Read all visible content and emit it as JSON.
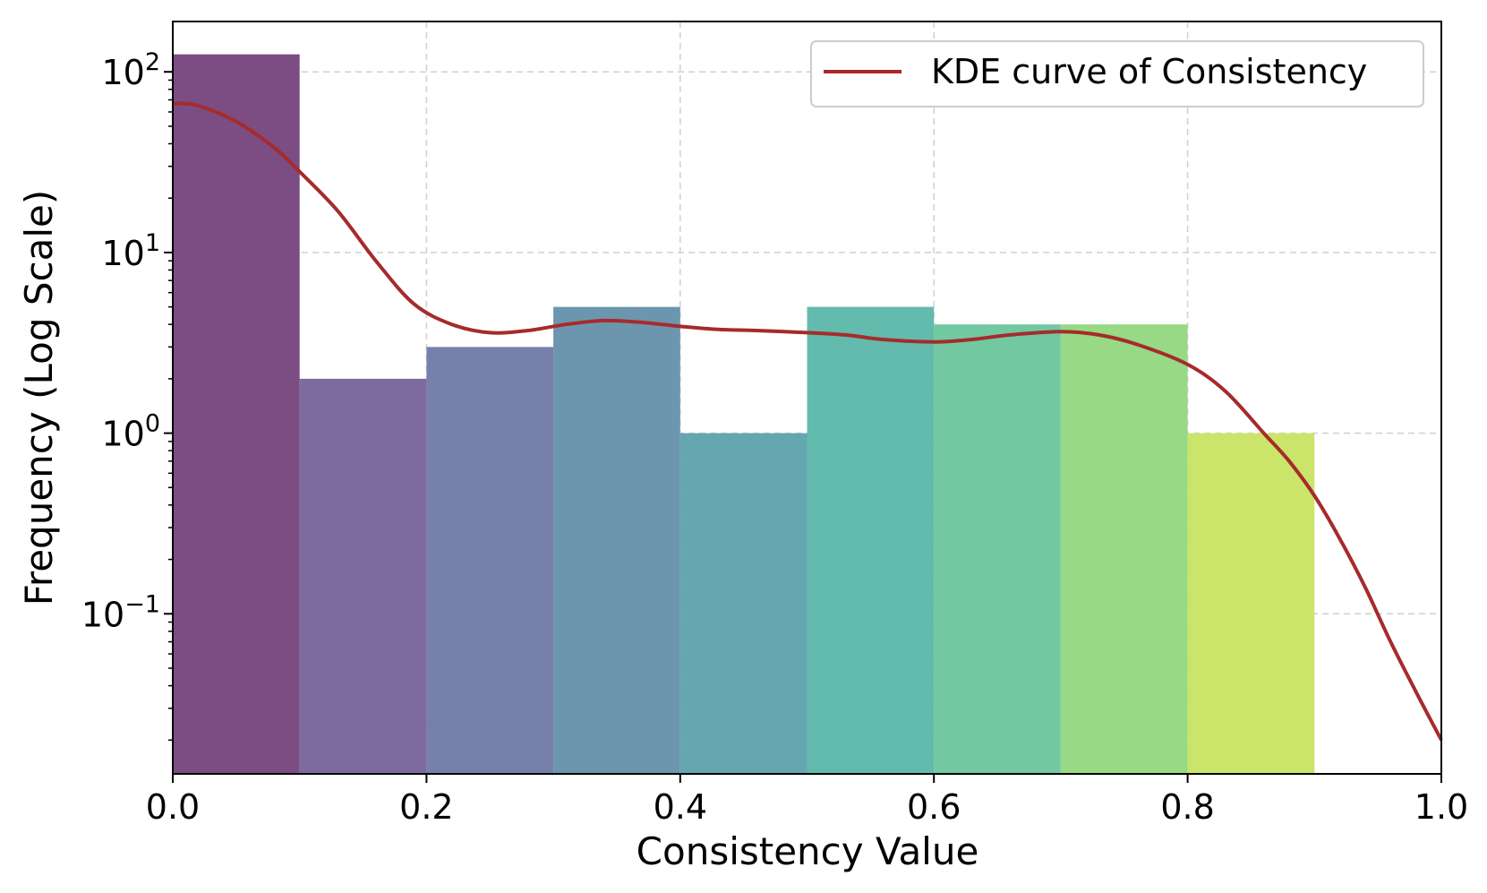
{
  "chart_data": {
    "type": "bar",
    "subtype": "histogram",
    "title": "",
    "xlabel": "Consistency Value",
    "ylabel": "Frequency (Log Scale)",
    "xlim": [
      0.0,
      1.0
    ],
    "ylim": [
      0.013,
      190
    ],
    "yscale": "log",
    "grid": true,
    "x_ticks": [
      0.0,
      0.2,
      0.4,
      0.6,
      0.8,
      1.0
    ],
    "x_tick_labels": [
      "0.0",
      "0.2",
      "0.4",
      "0.6",
      "0.8",
      "1.0"
    ],
    "y_ticks": [
      {
        "value": 100,
        "base": "10",
        "exp": "2"
      },
      {
        "value": 10,
        "base": "10",
        "exp": "1"
      },
      {
        "value": 1,
        "base": "10",
        "exp": "0"
      },
      {
        "value": 0.1,
        "base": "10",
        "exp": "−1"
      }
    ],
    "bins": [
      {
        "start": 0.0,
        "end": 0.1,
        "count": 125,
        "color": "#7b4d82"
      },
      {
        "start": 0.1,
        "end": 0.2,
        "count": 2,
        "color": "#7f6a9e"
      },
      {
        "start": 0.2,
        "end": 0.3,
        "count": 3,
        "color": "#7780aa"
      },
      {
        "start": 0.3,
        "end": 0.4,
        "count": 5,
        "color": "#6c96ae"
      },
      {
        "start": 0.4,
        "end": 0.5,
        "count": 1,
        "color": "#65a7b0"
      },
      {
        "start": 0.5,
        "end": 0.6,
        "count": 5,
        "color": "#62bbac"
      },
      {
        "start": 0.6,
        "end": 0.7,
        "count": 4,
        "color": "#72c9a1"
      },
      {
        "start": 0.7,
        "end": 0.8,
        "count": 4,
        "color": "#97d985"
      },
      {
        "start": 0.8,
        "end": 0.9,
        "count": 1,
        "color": "#cbe56b"
      }
    ],
    "series": [
      {
        "name": "KDE curve of Consistency",
        "color": "#a62b2b",
        "x": [
          0.0,
          0.02,
          0.05,
          0.08,
          0.1,
          0.13,
          0.16,
          0.19,
          0.22,
          0.25,
          0.28,
          0.31,
          0.34,
          0.37,
          0.4,
          0.43,
          0.46,
          0.5,
          0.53,
          0.56,
          0.6,
          0.63,
          0.66,
          0.7,
          0.73,
          0.76,
          0.8,
          0.83,
          0.86,
          0.88,
          0.9,
          0.92,
          0.94,
          0.96,
          0.98,
          1.0
        ],
        "y": [
          67,
          65,
          53,
          38,
          28,
          17,
          9,
          5.2,
          4.0,
          3.6,
          3.7,
          4.0,
          4.2,
          4.1,
          3.9,
          3.75,
          3.7,
          3.6,
          3.5,
          3.3,
          3.2,
          3.3,
          3.5,
          3.65,
          3.5,
          3.1,
          2.4,
          1.7,
          1.0,
          0.7,
          0.45,
          0.26,
          0.14,
          0.07,
          0.037,
          0.02
        ]
      }
    ],
    "legend_position": "top-right"
  }
}
